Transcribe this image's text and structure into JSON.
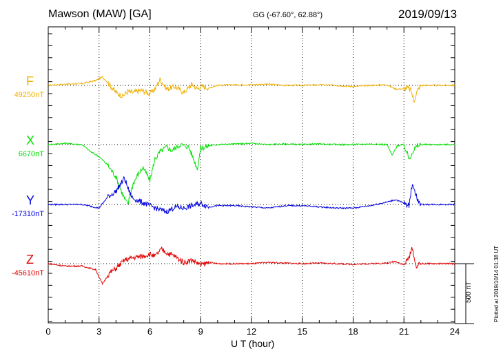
{
  "header": {
    "station": "Mawson (MAW)  [GA]",
    "coords": "GG (-67.60°,  62.88°)",
    "date": "2019/09/13"
  },
  "footnote": "Plotted at 2019/10/14 01:38 UT",
  "scale_bar": {
    "label": "500 nT",
    "value_nT": 500
  },
  "colors": {
    "F": "#f0b000",
    "X": "#00e000",
    "Y": "#0000e0",
    "Z": "#e00000"
  },
  "chart_data": {
    "type": "line",
    "xlabel": "U T (hour)",
    "xlim": [
      0,
      24
    ],
    "xticks": [
      "0",
      "3",
      "6",
      "9",
      "12",
      "15",
      "18",
      "21",
      "24"
    ],
    "grid": "vertical dotted every 3 hours",
    "series": [
      {
        "name": "F",
        "baseline_label": "49250nT",
        "x": [
          0,
          1,
          2,
          2.8,
          3.2,
          3.6,
          4.0,
          4.4,
          4.7,
          5.0,
          5.5,
          6.0,
          6.3,
          6.6,
          7.0,
          7.5,
          8.0,
          8.5,
          8.8,
          9.0,
          9.5,
          10,
          11,
          12,
          13,
          14,
          15,
          16,
          17,
          18,
          19,
          20,
          20.5,
          21,
          21.2,
          21.4,
          21.6,
          21.8,
          22,
          23,
          24
        ],
        "y": [
          0,
          10,
          15,
          40,
          70,
          10,
          -60,
          -90,
          -50,
          -60,
          -40,
          -70,
          -30,
          50,
          -30,
          -10,
          -60,
          10,
          -30,
          -10,
          -20,
          0,
          5,
          5,
          10,
          0,
          0,
          5,
          0,
          -10,
          0,
          5,
          -30,
          -30,
          -20,
          -40,
          -130,
          -40,
          0,
          0,
          0
        ]
      },
      {
        "name": "X",
        "baseline_label": "6670nT",
        "x": [
          0,
          1,
          2,
          2.5,
          3.0,
          3.5,
          4.0,
          4.4,
          4.7,
          5.0,
          5.3,
          5.6,
          6.0,
          6.3,
          6.6,
          7.0,
          7.3,
          7.8,
          8.3,
          8.8,
          9.0,
          9.5,
          10,
          11,
          12,
          13,
          14,
          15,
          16,
          17,
          18,
          19,
          20,
          20.3,
          20.6,
          21,
          21.3,
          21.5,
          21.8,
          22,
          23,
          24
        ],
        "y": [
          0,
          10,
          0,
          -60,
          -100,
          -170,
          -270,
          -420,
          -500,
          -330,
          -250,
          -190,
          -300,
          -120,
          -60,
          -20,
          -50,
          0,
          -20,
          -200,
          -30,
          -10,
          0,
          5,
          10,
          0,
          5,
          0,
          5,
          0,
          0,
          5,
          0,
          -90,
          -10,
          0,
          -120,
          -60,
          -10,
          0,
          0,
          0
        ]
      },
      {
        "name": "Y",
        "baseline_label": "-17310nT",
        "x": [
          0,
          1,
          2,
          3.0,
          3.5,
          4.0,
          4.5,
          4.8,
          5.0,
          5.5,
          6.0,
          6.5,
          7.0,
          7.5,
          8.0,
          8.5,
          9.0,
          9.5,
          10,
          11,
          12,
          13,
          14,
          15,
          16,
          17,
          18,
          19,
          20,
          20.5,
          21,
          21.3,
          21.5,
          21.8,
          22,
          23,
          24
        ],
        "y": [
          0,
          0,
          0,
          -30,
          60,
          110,
          220,
          100,
          50,
          20,
          -10,
          -40,
          -60,
          -20,
          -30,
          -10,
          10,
          -20,
          -10,
          -10,
          -20,
          -30,
          -10,
          -10,
          -20,
          -30,
          -30,
          -10,
          20,
          40,
          10,
          -10,
          180,
          40,
          0,
          0,
          0
        ]
      },
      {
        "name": "Z",
        "baseline_label": "-45610nT",
        "x": [
          0,
          1,
          2,
          2.8,
          3.2,
          3.6,
          4.0,
          4.5,
          5.0,
          5.5,
          6.0,
          6.3,
          6.7,
          7.0,
          7.5,
          8.0,
          8.5,
          9.0,
          9.5,
          10,
          11,
          12,
          13,
          14,
          15,
          16,
          17,
          18,
          19,
          20,
          20.5,
          21,
          21.3,
          21.5,
          21.7,
          22,
          23,
          24
        ],
        "y": [
          0,
          -20,
          -20,
          -50,
          -170,
          -80,
          -40,
          30,
          50,
          60,
          80,
          60,
          120,
          90,
          60,
          10,
          30,
          -10,
          10,
          0,
          0,
          0,
          10,
          5,
          0,
          5,
          0,
          -5,
          0,
          5,
          20,
          -10,
          50,
          130,
          -20,
          0,
          0,
          0
        ]
      }
    ]
  }
}
